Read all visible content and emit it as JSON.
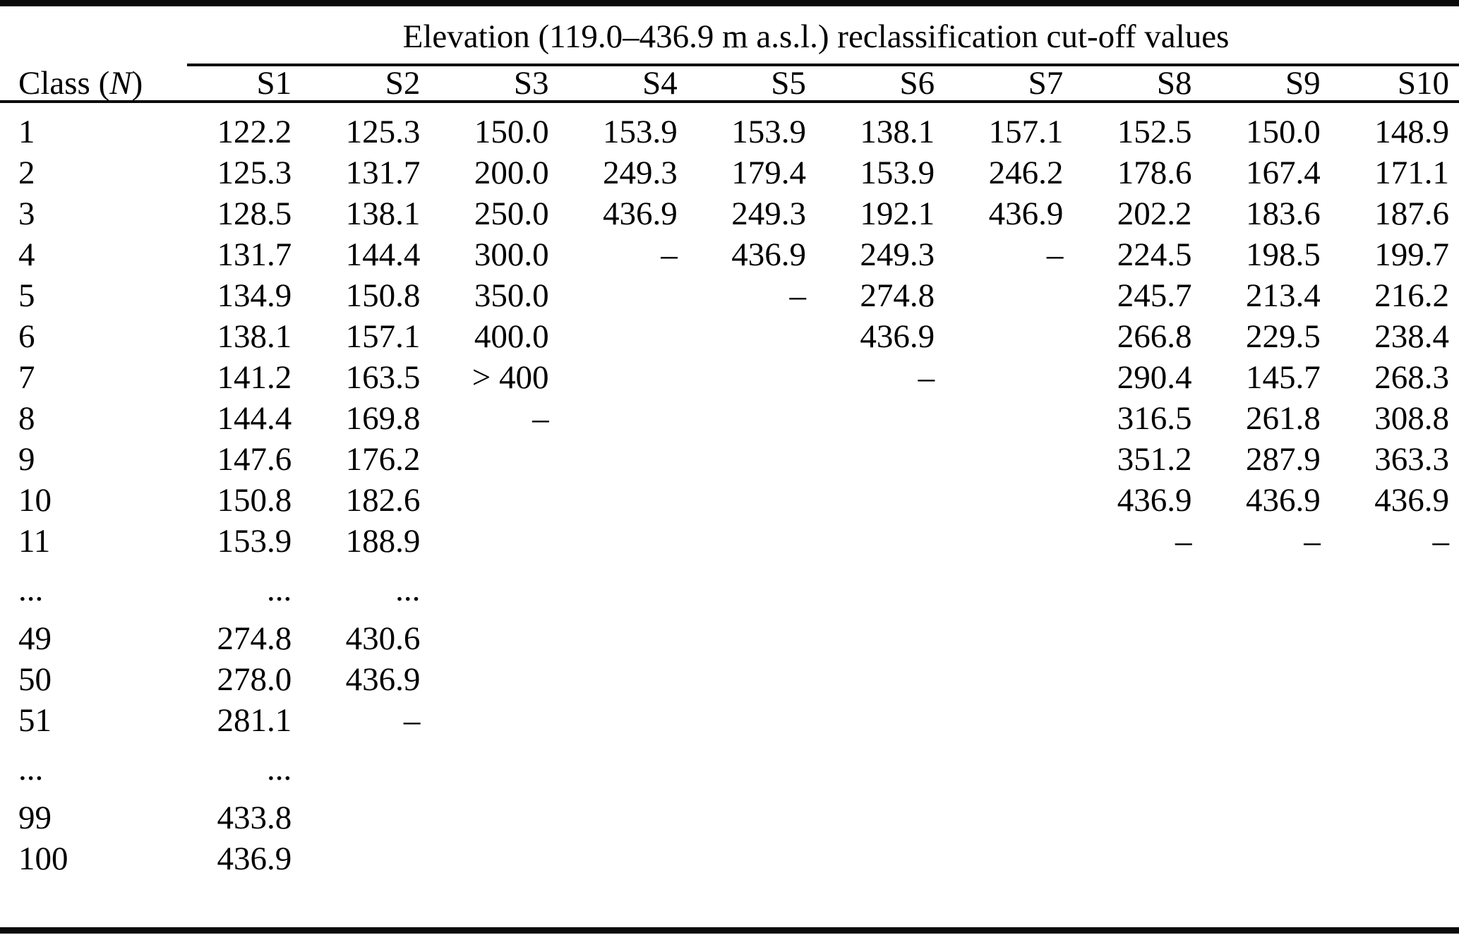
{
  "page": {
    "background": "#ffffff",
    "text_color": "#000000",
    "rule_color": "#0a0a0a"
  },
  "table": {
    "title": "Elevation (119.0–436.9 m a.s.l.) reclassification cut-off values",
    "class_header": {
      "prefix": "Class (",
      "symbol": "N",
      "suffix": ")"
    },
    "scenario_headers": [
      "S1",
      "S2",
      "S3",
      "S4",
      "S5",
      "S6",
      "S7",
      "S8",
      "S9",
      "S10"
    ],
    "rows": [
      {
        "class": "1",
        "values": [
          "122.2",
          "125.3",
          "150.0",
          "153.9",
          "153.9",
          "138.1",
          "157.1",
          "152.5",
          "150.0",
          "148.9"
        ]
      },
      {
        "class": "2",
        "values": [
          "125.3",
          "131.7",
          "200.0",
          "249.3",
          "179.4",
          "153.9",
          "246.2",
          "178.6",
          "167.4",
          "171.1"
        ]
      },
      {
        "class": "3",
        "values": [
          "128.5",
          "138.1",
          "250.0",
          "436.9",
          "249.3",
          "192.1",
          "436.9",
          "202.2",
          "183.6",
          "187.6"
        ]
      },
      {
        "class": "4",
        "values": [
          "131.7",
          "144.4",
          "300.0",
          "–",
          "436.9",
          "249.3",
          "–",
          "224.5",
          "198.5",
          "199.7"
        ]
      },
      {
        "class": "5",
        "values": [
          "134.9",
          "150.8",
          "350.0",
          "",
          "–",
          "274.8",
          "",
          "245.7",
          "213.4",
          "216.2"
        ]
      },
      {
        "class": "6",
        "values": [
          "138.1",
          "157.1",
          "400.0",
          "",
          "",
          "436.9",
          "",
          "266.8",
          "229.5",
          "238.4"
        ]
      },
      {
        "class": "7",
        "values": [
          "141.2",
          "163.5",
          "> 400",
          "",
          "",
          "–",
          "",
          "290.4",
          "145.7",
          "268.3"
        ]
      },
      {
        "class": "8",
        "values": [
          "144.4",
          "169.8",
          "–",
          "",
          "",
          "",
          "",
          "316.5",
          "261.8",
          "308.8"
        ]
      },
      {
        "class": "9",
        "values": [
          "147.6",
          "176.2",
          "",
          "",
          "",
          "",
          "",
          "351.2",
          "287.9",
          "363.3"
        ]
      },
      {
        "class": "10",
        "values": [
          "150.8",
          "182.6",
          "",
          "",
          "",
          "",
          "",
          "436.9",
          "436.9",
          "436.9"
        ]
      },
      {
        "class": "11",
        "values": [
          "153.9",
          "188.9",
          "",
          "",
          "",
          "",
          "",
          "–",
          "–",
          "–"
        ]
      },
      {
        "class": "...",
        "values": [
          "...",
          "...",
          "",
          "",
          "",
          "",
          "",
          "",
          "",
          ""
        ]
      },
      {
        "class": "49",
        "values": [
          "274.8",
          "430.6",
          "",
          "",
          "",
          "",
          "",
          "",
          "",
          ""
        ]
      },
      {
        "class": "50",
        "values": [
          "278.0",
          "436.9",
          "",
          "",
          "",
          "",
          "",
          "",
          "",
          ""
        ]
      },
      {
        "class": "51",
        "values": [
          "281.1",
          "–",
          "",
          "",
          "",
          "",
          "",
          "",
          "",
          ""
        ]
      },
      {
        "class": "...",
        "values": [
          "...",
          "",
          "",
          "",
          "",
          "",
          "",
          "",
          "",
          ""
        ]
      },
      {
        "class": "99",
        "values": [
          "433.8",
          "",
          "",
          "",
          "",
          "",
          "",
          "",
          "",
          ""
        ]
      },
      {
        "class": "100",
        "values": [
          "436.9",
          "",
          "",
          "",
          "",
          "",
          "",
          "",
          "",
          ""
        ]
      }
    ]
  }
}
